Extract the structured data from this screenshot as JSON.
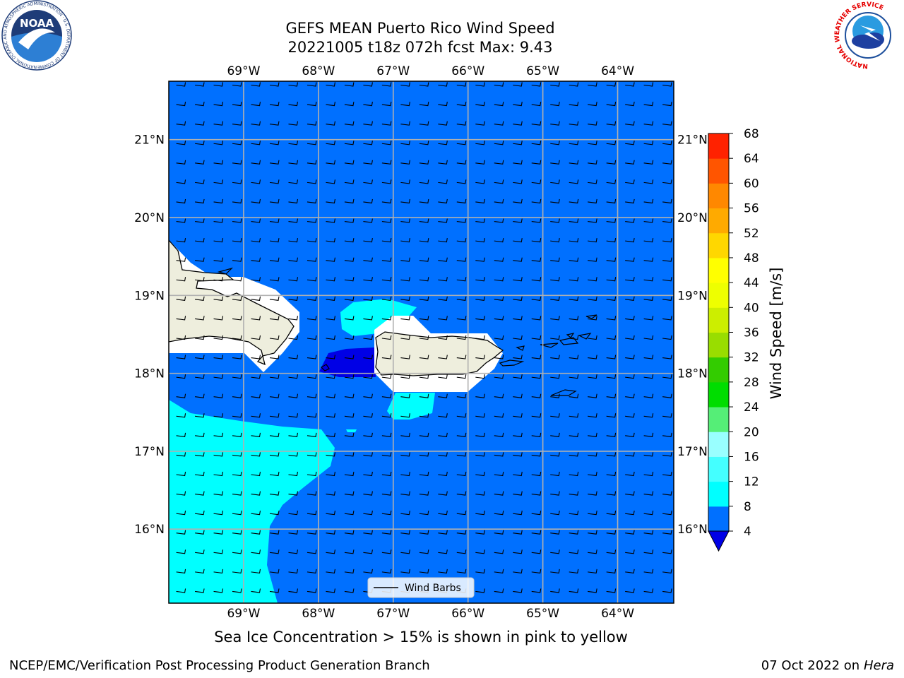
{
  "title": {
    "line1": "GEFS MEAN Puerto Rico Wind Speed",
    "line2": "20221005 t18z 072h fcst   Max: 9.43"
  },
  "footer": {
    "left": "NCEP/EMC/Verification Post Processing Product Generation Branch",
    "right_date": "07 Oct 2022 on ",
    "right_host": "Hera"
  },
  "caption": "Sea Ice Concentration > 15% is shown in pink to yellow",
  "legend": {
    "label": "Wind Barbs"
  },
  "logos": {
    "noaa": "NOAA",
    "noaa_ring": "NATIONAL OCEANIC AND ATMOSPHERIC ADMINISTRATION · U.S. DEPARTMENT OF COMMERCE",
    "nws_ring": "NATIONAL WEATHER SERVICE"
  },
  "map": {
    "lon_range": [
      -70.0,
      -63.25
    ],
    "lat_range": [
      15.05,
      21.75
    ],
    "lon_ticks": [
      {
        "value": -69,
        "label": "69°W"
      },
      {
        "value": -68,
        "label": "68°W"
      },
      {
        "value": -67,
        "label": "67°W"
      },
      {
        "value": -66,
        "label": "66°W"
      },
      {
        "value": -65,
        "label": "65°W"
      },
      {
        "value": -64,
        "label": "64°W"
      }
    ],
    "lat_ticks": [
      {
        "value": 21,
        "label": "21°N"
      },
      {
        "value": 20,
        "label": "20°N"
      },
      {
        "value": 19,
        "label": "19°N"
      },
      {
        "value": 18,
        "label": "18°N"
      },
      {
        "value": 17,
        "label": "17°N"
      },
      {
        "value": 16,
        "label": "16°N"
      }
    ],
    "colors": {
      "ocean_4_8": "#0070ff",
      "ocean_8_12": "#00ffff",
      "ocean_below_4": "#0000e6",
      "land": "#eeeedd",
      "masked": "#ffffff",
      "grid": "#b0b0b0"
    },
    "wind_barb_direction": "easterly",
    "barb_spacing_deg": 0.25
  },
  "colorbar": {
    "label": "Wind Speed [m/s]",
    "levels": [
      4,
      8,
      12,
      16,
      20,
      24,
      28,
      32,
      36,
      40,
      44,
      48,
      52,
      56,
      60,
      64,
      68
    ],
    "colors": [
      "#0070ff",
      "#00ffff",
      "#44ffff",
      "#99ffff",
      "#55ee77",
      "#00dd00",
      "#33cc00",
      "#99dd00",
      "#ccee00",
      "#eeff00",
      "#ffff00",
      "#ffd700",
      "#ffaa00",
      "#ff8800",
      "#ff5500",
      "#ff2200"
    ],
    "under_color": "#0000e6"
  }
}
